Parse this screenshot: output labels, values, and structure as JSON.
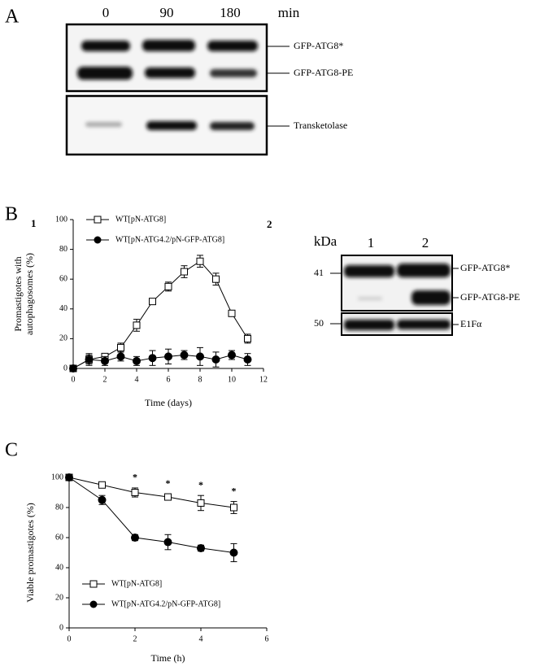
{
  "panel_labels": {
    "a": "A",
    "b": "B",
    "c": "C"
  },
  "subpanel_labels": [
    "1",
    "2"
  ],
  "blot_a": {
    "lanes": [
      "0",
      "90",
      "180"
    ],
    "unit": "min",
    "bands": [
      "GFP-ATG8*",
      "GFP-ATG8-PE",
      "Transketolase"
    ]
  },
  "blot_b": {
    "unit": "kDa",
    "lanes": [
      "1",
      "2"
    ],
    "markers": [
      "41",
      "50"
    ],
    "bands": [
      "GFP-ATG8*",
      "GFP-ATG8-PE",
      "E1Fα"
    ]
  },
  "chart_data": [
    {
      "type": "line",
      "xlabel": "Time (days)",
      "ylabel": [
        "Promastigotes with",
        "autophagosomes (%)"
      ],
      "x": [
        0,
        1,
        2,
        3,
        4,
        5,
        6,
        7,
        8,
        9,
        10,
        11
      ],
      "xlim": [
        0,
        12
      ],
      "xticks": [
        0,
        2,
        4,
        6,
        8,
        10,
        12
      ],
      "ylim": [
        0,
        100
      ],
      "yticks": [
        0,
        20,
        40,
        60,
        80,
        100
      ],
      "legend": "upper left",
      "series": [
        {
          "name": "WT[pN-ATG8]",
          "color": "#000000",
          "marker": "open-square",
          "values": [
            0,
            6,
            8,
            14,
            29,
            45,
            55,
            65,
            72,
            60,
            37,
            20
          ],
          "errors": [
            0,
            3,
            2,
            3,
            4,
            1,
            3,
            4,
            4,
            4,
            1,
            3
          ]
        },
        {
          "name": "WT[pN-ATG4.2/pN-GFP-ATG8]",
          "color": "#000000",
          "marker": "filled-circle",
          "values": [
            0,
            6,
            5,
            8,
            5,
            7,
            8,
            9,
            8,
            6,
            9,
            6
          ],
          "errors": [
            0,
            4,
            3,
            3,
            3,
            5,
            5,
            3,
            6,
            5,
            3,
            4
          ]
        }
      ]
    },
    {
      "type": "line",
      "xlabel": "Time (h)",
      "ylabel": [
        "Viable promastigotes (%)"
      ],
      "x": [
        0,
        1,
        2,
        3,
        4,
        5
      ],
      "xlim": [
        0,
        6
      ],
      "xticks": [
        0,
        2,
        4,
        6
      ],
      "ylim": [
        0,
        100
      ],
      "yticks": [
        0,
        20,
        40,
        60,
        80,
        100
      ],
      "legend": "lower left",
      "series": [
        {
          "name": "WT[pN-ATG8]",
          "color": "#000000",
          "marker": "open-square",
          "values": [
            100,
            95,
            90,
            87,
            83,
            80
          ],
          "errors": [
            0,
            1,
            3,
            2,
            5,
            4
          ]
        },
        {
          "name": "WT[pN-ATG4.2/pN-GFP-ATG8]",
          "color": "#000000",
          "marker": "filled-circle",
          "values": [
            100,
            85,
            60,
            57,
            53,
            50
          ],
          "errors": [
            0,
            3,
            2,
            5,
            2,
            6
          ]
        }
      ],
      "annotations": [
        {
          "x": 2,
          "text": "*"
        },
        {
          "x": 3,
          "text": "*"
        },
        {
          "x": 4,
          "text": "*"
        },
        {
          "x": 5,
          "text": "*"
        }
      ]
    }
  ]
}
